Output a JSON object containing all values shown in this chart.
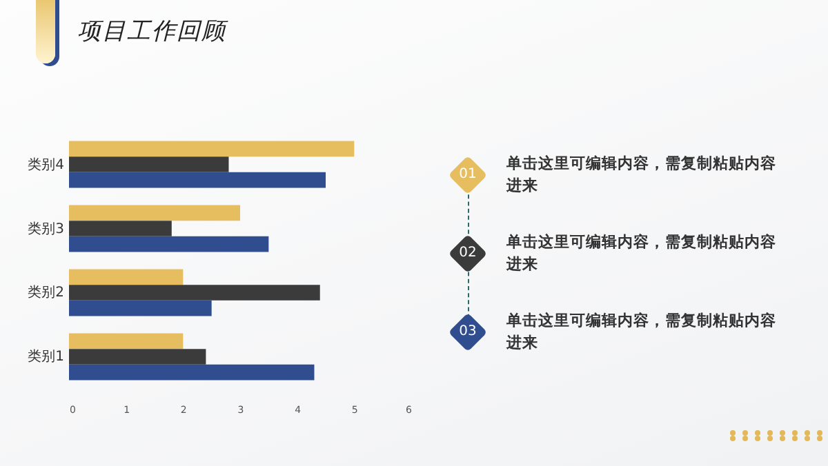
{
  "chart_data": {
    "type": "bar",
    "orientation": "horizontal",
    "title": "项目工作回顾",
    "categories": [
      "类别4",
      "类别3",
      "类别2",
      "类别1"
    ],
    "series": [
      {
        "color": "#e6bd5f",
        "values": [
          5.0,
          3.0,
          2.0,
          2.0
        ]
      },
      {
        "color": "#3b3b3b",
        "values": [
          2.8,
          1.8,
          4.4,
          2.4
        ]
      },
      {
        "color": "#2f4d8f",
        "values": [
          4.5,
          3.5,
          2.5,
          4.3
        ]
      }
    ],
    "xlim": [
      0,
      6
    ],
    "xticks": [
      0,
      1,
      2,
      3,
      4,
      5,
      6
    ],
    "grid": false,
    "legend": false,
    "annotations": [
      "01",
      "单击这里可编辑内容，需复制粘贴内容进来",
      "02",
      "单击这里可编辑内容，需复制粘贴内容进来",
      "03",
      "单击这里可编辑内容，需复制粘贴内容进来"
    ]
  }
}
